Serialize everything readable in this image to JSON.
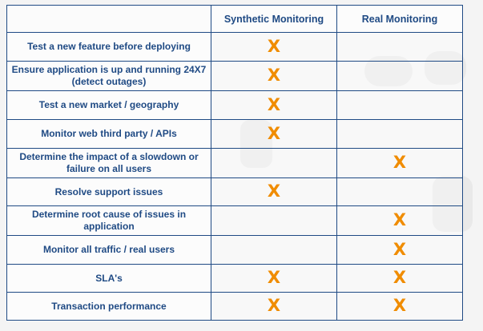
{
  "table": {
    "columns": [
      "Synthetic Monitoring",
      "Real Monitoring"
    ],
    "mark_symbol": "X",
    "mark_color": "#f08c00",
    "border_color": "#1f4a84",
    "rows": [
      {
        "feature": "Test a new feature before deploying",
        "synthetic": true,
        "real": false
      },
      {
        "feature": "Ensure application is up and running 24X7 (detect outages)",
        "synthetic": true,
        "real": false
      },
      {
        "feature": "Test a new market / geography",
        "synthetic": true,
        "real": false
      },
      {
        "feature": "Monitor web third party / APIs",
        "synthetic": true,
        "real": false
      },
      {
        "feature": "Determine the impact of a slowdown or failure on all users",
        "synthetic": false,
        "real": true
      },
      {
        "feature": "Resolve support issues",
        "synthetic": true,
        "real": false
      },
      {
        "feature": "Determine root cause of issues in application",
        "synthetic": false,
        "real": true
      },
      {
        "feature": "Monitor all traffic / real users",
        "synthetic": false,
        "real": true
      },
      {
        "feature": "SLA's",
        "synthetic": true,
        "real": true
      },
      {
        "feature": "Transaction performance",
        "synthetic": true,
        "real": true
      }
    ]
  }
}
